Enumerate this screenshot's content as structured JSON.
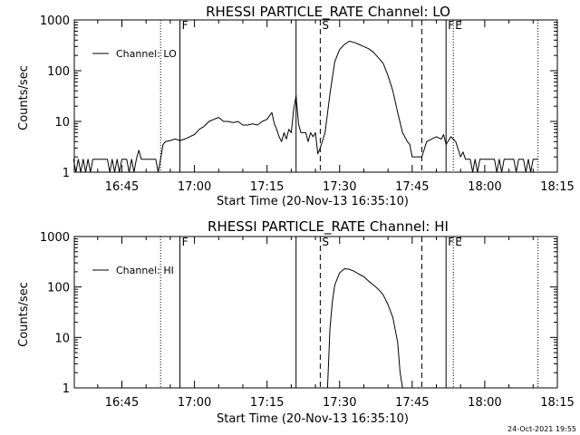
{
  "footer": {
    "timestamp": "24-Oct-2021 19:55"
  },
  "chart_data": [
    {
      "type": "line",
      "title": "RHESSI PARTICLE_RATE Channel: LO",
      "xlabel": "Start Time (20-Nov-13 16:35:10)",
      "ylabel": "Counts/sec",
      "yscale": "log",
      "ylim": [
        1,
        1000
      ],
      "xlim": [
        "16:35:10",
        "18:15:00"
      ],
      "x_ticks": [
        "16:45",
        "17:00",
        "17:15",
        "17:30",
        "17:45",
        "18:00",
        "18:15"
      ],
      "y_ticks": [
        "1",
        "10",
        "100",
        "1000"
      ],
      "legend": {
        "position": "top-left",
        "entries": [
          "Channel: LO"
        ]
      },
      "markers": [
        {
          "time": "16:53",
          "style": "dotted",
          "label": ""
        },
        {
          "time": "16:57",
          "style": "solid",
          "label": "F"
        },
        {
          "time": "17:21",
          "style": "solid",
          "label": ""
        },
        {
          "time": "17:26",
          "style": "dashed",
          "label": "S"
        },
        {
          "time": "17:47",
          "style": "dashed",
          "label": ""
        },
        {
          "time": "17:52",
          "style": "solid",
          "label": "F"
        },
        {
          "time": "17:53.5",
          "style": "dotted",
          "label": "E"
        },
        {
          "time": "18:11",
          "style": "dotted",
          "label": ""
        }
      ],
      "series": [
        {
          "name": "Channel: LO",
          "points": [
            [
              "16:35",
              1.8
            ],
            [
              "16:35.5",
              1
            ],
            [
              "16:36",
              1.8
            ],
            [
              "16:36.5",
              1
            ],
            [
              "16:37",
              1.8
            ],
            [
              "16:37.5",
              1
            ],
            [
              "16:38",
              1.8
            ],
            [
              "16:38.5",
              1
            ],
            [
              "16:39",
              1.8
            ],
            [
              "16:42",
              1.8
            ],
            [
              "16:42.5",
              1
            ],
            [
              "16:43",
              1.8
            ],
            [
              "16:43.5",
              1
            ],
            [
              "16:44",
              1.8
            ],
            [
              "16:44.5",
              1
            ],
            [
              "16:45",
              1.8
            ],
            [
              "16:46",
              1.8
            ],
            [
              "16:46.5",
              1
            ],
            [
              "16:47",
              1.8
            ],
            [
              "16:47.5",
              1
            ],
            [
              "16:48",
              1.8
            ],
            [
              "16:48.5",
              2.7
            ],
            [
              "16:49",
              1.8
            ],
            [
              "16:50",
              1.8
            ],
            [
              "16:51",
              1.8
            ],
            [
              "16:52",
              1.8
            ],
            [
              "16:52.5",
              1
            ],
            [
              "16:53",
              1.8
            ],
            [
              "16:53.5",
              3.5
            ],
            [
              "16:54",
              4
            ],
            [
              "16:55",
              4.2
            ],
            [
              "16:56",
              4.5
            ],
            [
              "16:57",
              4.2
            ],
            [
              "16:58",
              4.5
            ],
            [
              "16:59",
              5
            ],
            [
              "17:00",
              5.5
            ],
            [
              "17:01",
              7
            ],
            [
              "17:02",
              8
            ],
            [
              "17:03",
              10
            ],
            [
              "17:04",
              11
            ],
            [
              "17:05",
              12
            ],
            [
              "17:06",
              10
            ],
            [
              "17:07",
              10
            ],
            [
              "17:08",
              9.5
            ],
            [
              "17:09",
              10
            ],
            [
              "17:10",
              8.5
            ],
            [
              "17:11",
              8.5
            ],
            [
              "17:12",
              9
            ],
            [
              "17:13",
              8.5
            ],
            [
              "17:14",
              10
            ],
            [
              "17:15",
              11
            ],
            [
              "17:16",
              15
            ],
            [
              "17:16.5",
              9
            ],
            [
              "17:17",
              7
            ],
            [
              "17:17.5",
              5
            ],
            [
              "17:18",
              4
            ],
            [
              "17:18.5",
              6
            ],
            [
              "17:19",
              4.5
            ],
            [
              "17:19.5",
              7
            ],
            [
              "17:20",
              6
            ],
            [
              "17:20.5",
              17
            ],
            [
              "17:21",
              32
            ],
            [
              "17:21.5",
              9
            ],
            [
              "17:22",
              6
            ],
            [
              "17:23",
              6
            ],
            [
              "17:23.5",
              4
            ],
            [
              "17:24",
              6
            ],
            [
              "17:24.5",
              5
            ],
            [
              "17:25",
              6
            ],
            [
              "17:25.5",
              2.3
            ],
            [
              "17:26",
              3
            ],
            [
              "17:27",
              6
            ],
            [
              "17:28",
              35
            ],
            [
              "17:29",
              150
            ],
            [
              "17:30",
              260
            ],
            [
              "17:31",
              330
            ],
            [
              "17:32",
              380
            ],
            [
              "17:33",
              360
            ],
            [
              "17:34",
              330
            ],
            [
              "17:35",
              300
            ],
            [
              "17:36",
              270
            ],
            [
              "17:37",
              230
            ],
            [
              "17:38",
              180
            ],
            [
              "17:39",
              140
            ],
            [
              "17:40",
              80
            ],
            [
              "17:41",
              40
            ],
            [
              "17:42",
              15
            ],
            [
              "17:43",
              6
            ],
            [
              "17:44",
              4
            ],
            [
              "17:44.5",
              3.5
            ],
            [
              "17:45",
              2
            ],
            [
              "17:46",
              2
            ],
            [
              "17:47",
              2
            ],
            [
              "17:48",
              4
            ],
            [
              "17:49",
              4.5
            ],
            [
              "17:50",
              5
            ],
            [
              "17:51",
              4.5
            ],
            [
              "17:51.5",
              5.5
            ],
            [
              "17:52",
              3.5
            ],
            [
              "17:53",
              5
            ],
            [
              "17:54",
              4
            ],
            [
              "17:55",
              2
            ],
            [
              "17:55.5",
              2.5
            ],
            [
              "17:56",
              1.8
            ],
            [
              "17:57",
              1.8
            ],
            [
              "17:57.5",
              1
            ],
            [
              "17:58",
              1.8
            ],
            [
              "17:58.5",
              1
            ],
            [
              "17:59",
              1.8
            ],
            [
              "18:00",
              1.8
            ],
            [
              "18:01",
              1.8
            ],
            [
              "18:02",
              1.8
            ],
            [
              "18:02.5",
              1
            ],
            [
              "18:03",
              1.8
            ],
            [
              "18:03.5",
              1
            ],
            [
              "18:04",
              1.8
            ],
            [
              "18:05",
              1.8
            ],
            [
              "18:06",
              1.8
            ],
            [
              "18:06.5",
              1
            ],
            [
              "18:07",
              1.8
            ],
            [
              "18:08",
              1.8
            ],
            [
              "18:08.5",
              1
            ],
            [
              "18:09",
              1.8
            ],
            [
              "18:09.5",
              1
            ],
            [
              "18:10",
              1.8
            ],
            [
              "18:11",
              1.8
            ]
          ]
        }
      ]
    },
    {
      "type": "line",
      "title": "RHESSI PARTICLE_RATE Channel: HI",
      "xlabel": "Start Time (20-Nov-13 16:35:10)",
      "ylabel": "Counts/sec",
      "yscale": "log",
      "ylim": [
        1,
        1000
      ],
      "xlim": [
        "16:35:10",
        "18:15:00"
      ],
      "x_ticks": [
        "16:45",
        "17:00",
        "17:15",
        "17:30",
        "17:45",
        "18:00",
        "18:15"
      ],
      "y_ticks": [
        "1",
        "10",
        "100",
        "1000"
      ],
      "legend": {
        "position": "top-left",
        "entries": [
          "Channel: HI"
        ]
      },
      "markers": [
        {
          "time": "16:53",
          "style": "dotted",
          "label": ""
        },
        {
          "time": "16:57",
          "style": "solid",
          "label": "F"
        },
        {
          "time": "17:21",
          "style": "solid",
          "label": ""
        },
        {
          "time": "17:26",
          "style": "dashed",
          "label": "S"
        },
        {
          "time": "17:47",
          "style": "dashed",
          "label": ""
        },
        {
          "time": "17:52",
          "style": "solid",
          "label": "F"
        },
        {
          "time": "17:53.5",
          "style": "dotted",
          "label": "E"
        },
        {
          "time": "18:11",
          "style": "dotted",
          "label": ""
        }
      ],
      "series": [
        {
          "name": "Channel: HI",
          "points": [
            [
              "17:27.5",
              1
            ],
            [
              "17:28",
              15
            ],
            [
              "17:28.5",
              50
            ],
            [
              "17:29",
              110
            ],
            [
              "17:30",
              190
            ],
            [
              "17:31",
              230
            ],
            [
              "17:32",
              225
            ],
            [
              "17:33",
              205
            ],
            [
              "17:34",
              180
            ],
            [
              "17:35",
              160
            ],
            [
              "17:36",
              130
            ],
            [
              "17:37",
              110
            ],
            [
              "17:38",
              90
            ],
            [
              "17:39",
              70
            ],
            [
              "17:40",
              45
            ],
            [
              "17:41",
              25
            ],
            [
              "17:42",
              8
            ],
            [
              "17:42.5",
              2
            ],
            [
              "17:43",
              1
            ]
          ]
        }
      ]
    }
  ]
}
